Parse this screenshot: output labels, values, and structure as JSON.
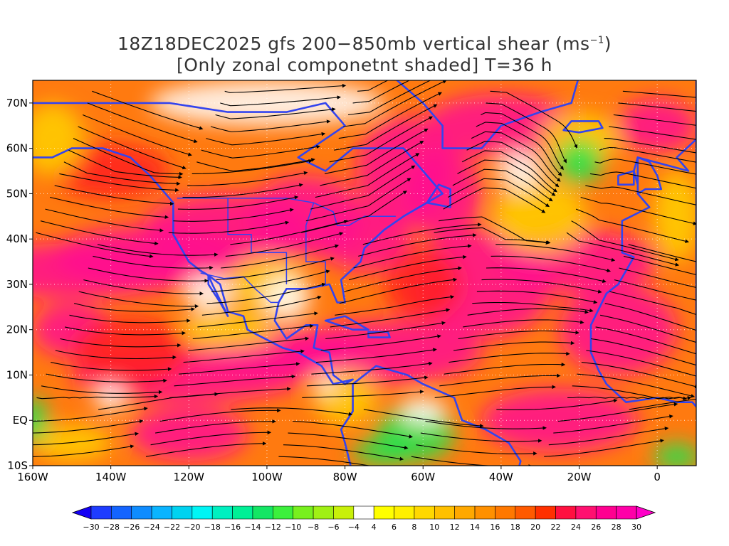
{
  "title": {
    "line1_prefix": "18Z18DEC2025 gfs 200−850mb vertical shear (ms",
    "line1_exp": "−1",
    "line1_suffix": ")",
    "line2": "[Only zonal componetnt shaded] T=36 h"
  },
  "map": {
    "lon_range": [
      -160,
      10
    ],
    "lat_range": [
      -10,
      75
    ],
    "lat_ticks": [
      {
        "lat": 70,
        "label": "70N"
      },
      {
        "lat": 60,
        "label": "60N"
      },
      {
        "lat": 50,
        "label": "50N"
      },
      {
        "lat": 40,
        "label": "40N"
      },
      {
        "lat": 30,
        "label": "30N"
      },
      {
        "lat": 20,
        "label": "20N"
      },
      {
        "lat": 10,
        "label": "10N"
      },
      {
        "lat": 0,
        "label": "EQ"
      },
      {
        "lat": -10,
        "label": "10S"
      }
    ],
    "lon_ticks": [
      {
        "lon": -160,
        "label": "160W"
      },
      {
        "lon": -140,
        "label": "140W"
      },
      {
        "lon": -120,
        "label": "120W"
      },
      {
        "lon": -100,
        "label": "100W"
      },
      {
        "lon": -80,
        "label": "80W"
      },
      {
        "lon": -60,
        "label": "60W"
      },
      {
        "lon": -40,
        "label": "40W"
      },
      {
        "lon": -20,
        "label": "20W"
      },
      {
        "lon": 0,
        "label": "0"
      }
    ],
    "coastline_color": "#3344ee",
    "contour_color": "#9933cc",
    "streamline_color": "#000000"
  },
  "colorbar": {
    "labels": [
      "−30",
      "−28",
      "−26",
      "−24",
      "−22",
      "−20",
      "−18",
      "−16",
      "−14",
      "−12",
      "−10",
      "−8",
      "−6",
      "−4",
      "4",
      "6",
      "8",
      "10",
      "12",
      "14",
      "16",
      "18",
      "20",
      "22",
      "24",
      "26",
      "28",
      "30"
    ],
    "colors": [
      "#1400f5",
      "#1e3cff",
      "#1464ff",
      "#0f8cff",
      "#0ab4ff",
      "#00d2f0",
      "#00f5f5",
      "#00f0c0",
      "#00f096",
      "#14e664",
      "#3cf03c",
      "#78f01e",
      "#a0f014",
      "#c8f00a",
      "#ffffff",
      "#ffff00",
      "#fff000",
      "#ffd800",
      "#ffc000",
      "#ffa800",
      "#ff9000",
      "#ff7800",
      "#ff5a00",
      "#ff3000",
      "#ff1040",
      "#ff1070",
      "#ff0090",
      "#ff00a8",
      "#ff00c8"
    ]
  }
}
